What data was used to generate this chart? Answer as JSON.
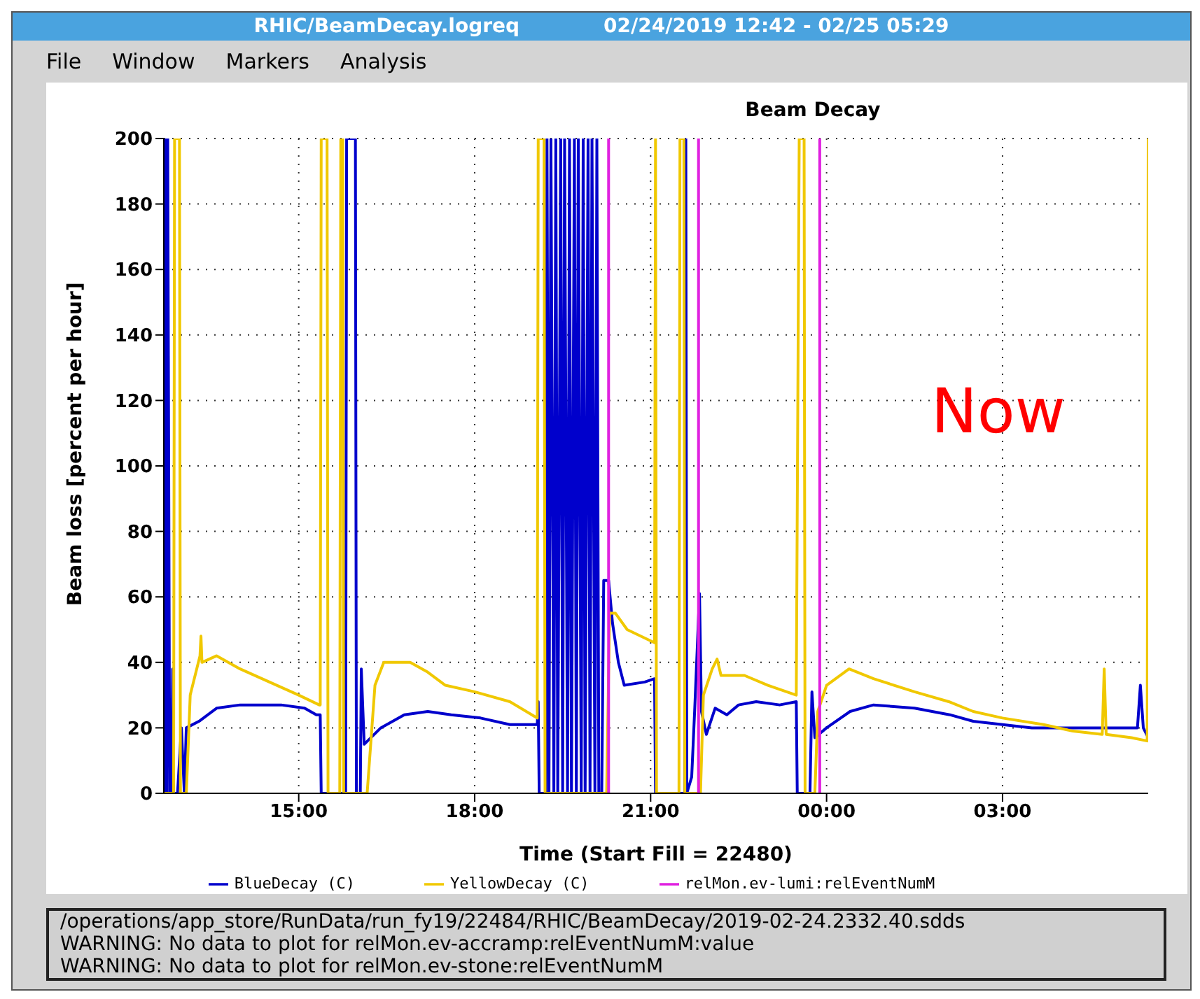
{
  "chart_data": {
    "type": "line",
    "title": "Beam Decay",
    "xlabel": "Time (Start Fill = 22480)",
    "ylabel": "Beam loss [percent per hour]",
    "xlim": [
      "2019-02-24T12:42",
      "2019-02-25T05:29"
    ],
    "xticks": [
      {
        "value": "2019-02-24T15:00",
        "label": "15:00"
      },
      {
        "value": "2019-02-24T18:00",
        "label": "18:00"
      },
      {
        "value": "2019-02-24T21:00",
        "label": "21:00"
      },
      {
        "value": "2019-02-25T00:00",
        "label": "00:00"
      },
      {
        "value": "2019-02-25T03:00",
        "label": "03:00"
      }
    ],
    "ylim": [
      0,
      200
    ],
    "yticks": [
      0,
      20,
      40,
      60,
      80,
      100,
      120,
      140,
      160,
      180,
      200
    ],
    "grid": true,
    "legend": "bottom",
    "marker": "none",
    "annotations": [
      "RHIC/BeamDecay.logreq",
      "02/24/2019 12:42 - 02/25 05:29",
      "File",
      "Window",
      "Markers",
      "Analysis",
      "Now",
      "/operations/app_store/RunData/run_fy19/22484/RHIC/BeamDecay/2019-02-24.2332.40.sdds",
      "WARNING: No data to plot for relMon.ev-accramp:relEventNumM:value",
      "WARNING: No data to plot for relMon.ev-stone:relEventNumM"
    ],
    "series": [
      {
        "name": "BlueDecay (C)",
        "color": "#0000cc",
        "x": [
          "2019-02-24T12:43",
          "2019-02-24T12:44",
          "2019-02-24T12:45",
          "2019-02-24T12:46",
          "2019-02-24T12:48",
          "2019-02-24T12:50",
          "2019-02-24T12:51",
          "2019-02-24T12:52",
          "2019-02-24T12:56",
          "2019-02-24T13:00",
          "2019-02-24T13:03",
          "2019-02-24T13:05",
          "2019-02-24T13:18",
          "2019-02-24T13:36",
          "2019-02-24T14:00",
          "2019-02-24T14:42",
          "2019-02-24T15:06",
          "2019-02-24T15:18",
          "2019-02-24T15:22",
          "2019-02-24T15:23",
          "2019-02-24T15:48",
          "2019-02-24T15:49",
          "2019-02-24T15:58",
          "2019-02-24T15:59",
          "2019-02-24T16:03",
          "2019-02-24T16:04",
          "2019-02-24T16:07",
          "2019-02-24T16:24",
          "2019-02-24T16:48",
          "2019-02-24T17:12",
          "2019-02-24T17:36",
          "2019-02-24T18:06",
          "2019-02-24T18:36",
          "2019-02-24T19:04",
          "2019-02-24T19:05",
          "2019-02-24T19:06",
          "2019-02-24T19:13",
          "2019-02-24T19:14",
          "2019-02-24T19:16",
          "2019-02-24T19:18",
          "2019-02-24T19:21",
          "2019-02-24T19:23",
          "2019-02-24T19:25",
          "2019-02-24T19:28",
          "2019-02-24T19:30",
          "2019-02-24T19:32",
          "2019-02-24T19:35",
          "2019-02-24T19:37",
          "2019-02-24T19:39",
          "2019-02-24T19:42",
          "2019-02-24T19:44",
          "2019-02-24T19:46",
          "2019-02-24T19:49",
          "2019-02-24T19:51",
          "2019-02-24T19:53",
          "2019-02-24T19:56",
          "2019-02-24T19:58",
          "2019-02-24T20:00",
          "2019-02-24T20:03",
          "2019-02-24T20:05",
          "2019-02-24T20:07",
          "2019-02-24T20:10",
          "2019-02-24T20:12",
          "2019-02-24T20:17",
          "2019-02-24T20:21",
          "2019-02-24T20:27",
          "2019-02-24T20:33",
          "2019-02-24T20:54",
          "2019-02-24T21:04",
          "2019-02-24T21:05",
          "2019-02-24T21:35",
          "2019-02-24T21:36",
          "2019-02-24T21:37",
          "2019-02-24T21:42",
          "2019-02-24T21:45",
          "2019-02-24T21:50",
          "2019-02-24T21:52",
          "2019-02-24T21:57",
          "2019-02-24T22:06",
          "2019-02-24T22:18",
          "2019-02-24T22:30",
          "2019-02-24T22:48",
          "2019-02-24T23:12",
          "2019-02-24T23:29",
          "2019-02-24T23:30",
          "2019-02-24T23:43",
          "2019-02-24T23:45",
          "2019-02-24T23:48",
          "2019-02-25T00:00",
          "2019-02-25T00:24",
          "2019-02-25T00:48",
          "2019-02-25T01:30",
          "2019-02-25T02:06",
          "2019-02-25T02:30",
          "2019-02-25T03:00",
          "2019-02-25T03:30",
          "2019-02-25T04:00",
          "2019-02-25T04:30",
          "2019-02-25T05:00",
          "2019-02-25T05:18",
          "2019-02-25T05:21",
          "2019-02-25T05:24",
          "2019-02-25T05:29"
        ],
        "values": [
          0,
          200,
          0,
          200,
          0,
          0,
          38,
          0,
          0,
          20,
          0,
          20,
          22,
          26,
          27,
          27,
          26,
          24,
          24,
          0,
          0,
          200,
          200,
          0,
          0,
          38,
          15,
          20,
          24,
          25,
          24,
          23,
          21,
          21,
          28,
          0,
          0,
          200,
          0,
          200,
          0,
          200,
          0,
          200,
          0,
          200,
          0,
          200,
          0,
          200,
          0,
          200,
          0,
          200,
          0,
          200,
          0,
          200,
          0,
          200,
          0,
          0,
          65,
          65,
          52,
          40,
          33,
          34,
          35,
          0,
          0,
          200,
          0,
          5,
          25,
          61,
          25,
          18,
          26,
          24,
          27,
          28,
          27,
          28,
          0,
          0,
          31,
          17,
          20,
          25,
          27,
          26,
          24,
          22,
          21,
          20,
          20,
          20,
          20,
          20,
          33,
          20,
          17
        ]
      },
      {
        "name": "YellowDecay (C)",
        "color": "#f0c800",
        "x": [
          "2019-02-24T12:42",
          "2019-02-24T12:52",
          "2019-02-24T12:53",
          "2019-02-24T12:58",
          "2019-02-24T12:59",
          "2019-02-24T13:05",
          "2019-02-24T13:09",
          "2019-02-24T13:19",
          "2019-02-24T13:20",
          "2019-02-24T13:21",
          "2019-02-24T13:36",
          "2019-02-24T14:00",
          "2019-02-24T14:30",
          "2019-02-24T15:00",
          "2019-02-24T15:21",
          "2019-02-24T15:22",
          "2019-02-24T15:23",
          "2019-02-24T15:29",
          "2019-02-24T15:30",
          "2019-02-24T15:42",
          "2019-02-24T15:43",
          "2019-02-24T15:45",
          "2019-02-24T15:46",
          "2019-02-24T16:10",
          "2019-02-24T16:18",
          "2019-02-24T16:27",
          "2019-02-24T16:54",
          "2019-02-24T17:12",
          "2019-02-24T17:30",
          "2019-02-24T18:00",
          "2019-02-24T18:36",
          "2019-02-24T19:04",
          "2019-02-24T19:05",
          "2019-02-24T19:11",
          "2019-02-24T19:12",
          "2019-02-24T20:15",
          "2019-02-24T20:18",
          "2019-02-24T20:24",
          "2019-02-24T20:36",
          "2019-02-24T21:04",
          "2019-02-24T21:05",
          "2019-02-24T21:06",
          "2019-02-24T21:29",
          "2019-02-24T21:30",
          "2019-02-24T21:34",
          "2019-02-24T21:35",
          "2019-02-24T21:51",
          "2019-02-24T21:54",
          "2019-02-24T22:03",
          "2019-02-24T22:08",
          "2019-02-24T22:12",
          "2019-02-24T22:36",
          "2019-02-24T23:00",
          "2019-02-24T23:29",
          "2019-02-24T23:32",
          "2019-02-24T23:37",
          "2019-02-24T23:38",
          "2019-02-24T23:48",
          "2019-02-24T23:51",
          "2019-02-25T00:00",
          "2019-02-25T00:23",
          "2019-02-25T00:48",
          "2019-02-25T01:30",
          "2019-02-25T02:05",
          "2019-02-25T02:30",
          "2019-02-25T03:00",
          "2019-02-25T03:42",
          "2019-02-25T04:12",
          "2019-02-25T04:42",
          "2019-02-25T04:44",
          "2019-02-25T04:46",
          "2019-02-25T05:12",
          "2019-02-25T05:28",
          "2019-02-25T05:29"
        ],
        "values": [
          0,
          0,
          200,
          200,
          0,
          0,
          30,
          42,
          48,
          40,
          42,
          38,
          34,
          30,
          27,
          27,
          200,
          200,
          0,
          0,
          200,
          200,
          0,
          0,
          33,
          40,
          40,
          37,
          33,
          31,
          28,
          23,
          200,
          200,
          0,
          0,
          55,
          55,
          50,
          46,
          200,
          0,
          0,
          200,
          200,
          0,
          0,
          30,
          38,
          41,
          36,
          36,
          33,
          30,
          200,
          200,
          0,
          0,
          25,
          33,
          38,
          35,
          31,
          28,
          25,
          23,
          21,
          19,
          18,
          38,
          18,
          17,
          16,
          200
        ]
      },
      {
        "name": "relMon.ev-lumi:relEventNumM",
        "color": "#e020e0",
        "x": [
          "2019-02-24T20:17",
          "2019-02-24T20:17",
          "2019-02-24T20:18",
          "2019-02-24T21:49",
          "2019-02-24T21:49",
          "2019-02-24T21:50",
          "2019-02-24T23:53",
          "2019-02-24T23:53"
        ],
        "values": [
          0,
          200,
          null,
          0,
          200,
          null,
          0,
          200
        ]
      }
    ]
  }
}
